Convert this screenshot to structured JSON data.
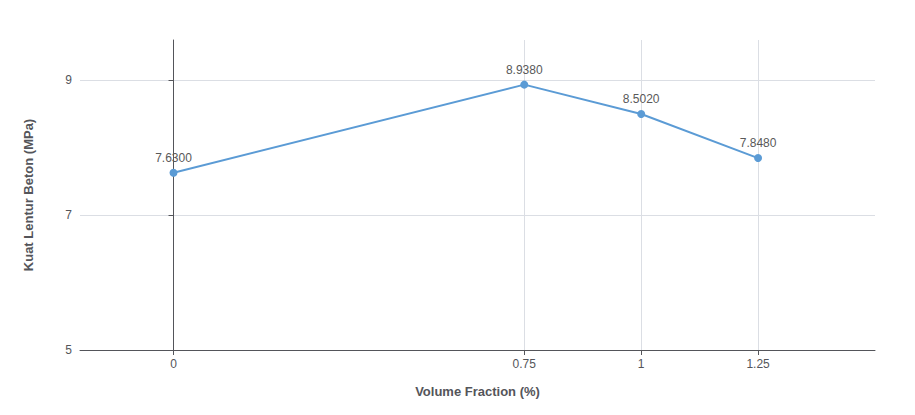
{
  "chart_data": {
    "type": "line",
    "x": [
      0,
      0.75,
      1,
      1.25
    ],
    "values": [
      7.63,
      8.938,
      8.502,
      7.848
    ],
    "value_labels": [
      "7.6300",
      "8.9380",
      "8.5020",
      "7.8480"
    ],
    "data_labels": true,
    "xlabel": "Volume Fraction (%)",
    "ylabel": "Kuat Lentur Beton (MPa)",
    "xlim": [
      -0.2,
      1.5
    ],
    "ylim": [
      5,
      9.6
    ],
    "xticks": [
      0,
      0.75,
      1,
      1.25
    ],
    "yticks": [
      5,
      7,
      9
    ],
    "color": "#5b9bd5",
    "marker": "circle",
    "grid": true
  }
}
